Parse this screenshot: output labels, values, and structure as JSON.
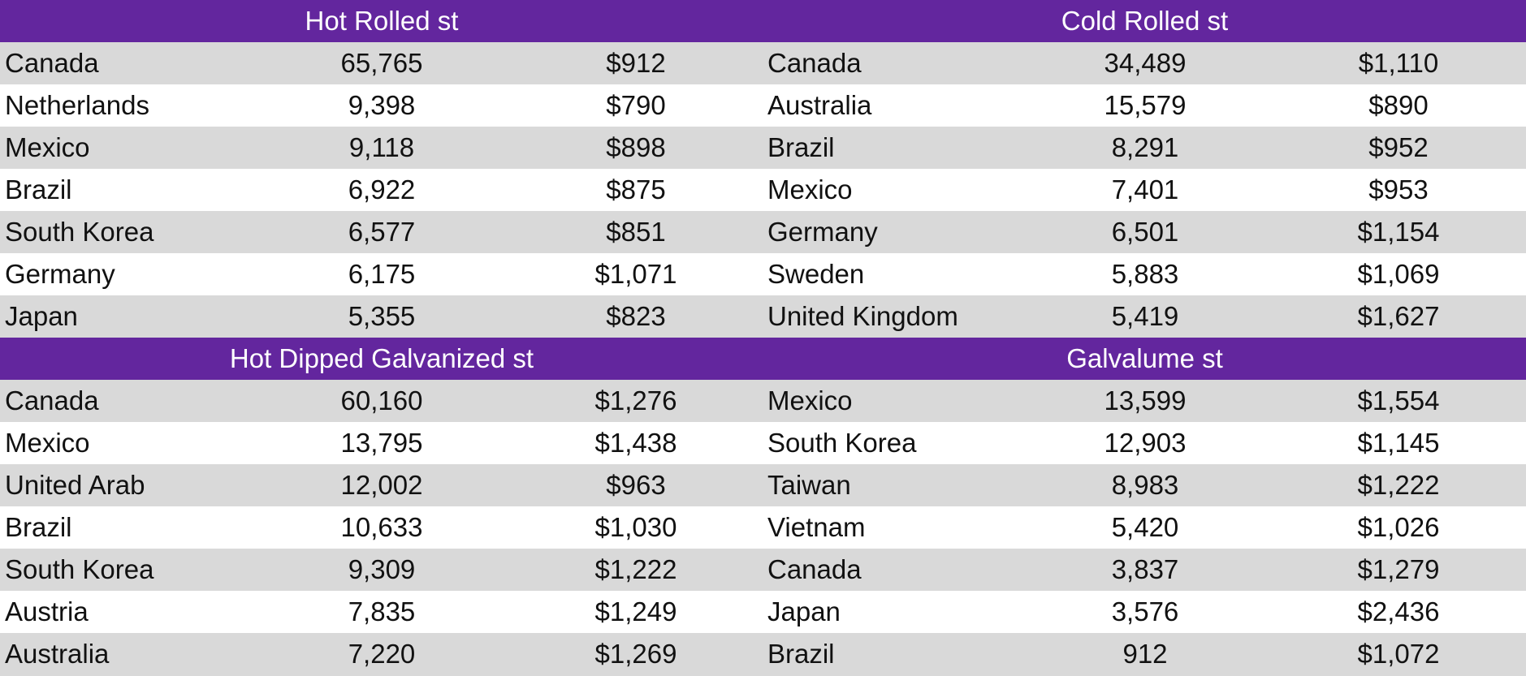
{
  "sections": [
    {
      "left": {
        "title": "Hot Rolled  st",
        "rows": [
          {
            "country": "Canada",
            "volume": "65,765",
            "price": "$912"
          },
          {
            "country": "Netherlands",
            "volume": "9,398",
            "price": "$790"
          },
          {
            "country": "Mexico",
            "volume": "9,118",
            "price": "$898"
          },
          {
            "country": "Brazil",
            "volume": "6,922",
            "price": "$875"
          },
          {
            "country": "South Korea",
            "volume": "6,577",
            "price": "$851"
          },
          {
            "country": "Germany",
            "volume": "6,175",
            "price": "$1,071"
          },
          {
            "country": "Japan",
            "volume": "5,355",
            "price": "$823"
          }
        ]
      },
      "right": {
        "title": "Cold Rolled st",
        "rows": [
          {
            "country": "Canada",
            "volume": "34,489",
            "price": "$1,110"
          },
          {
            "country": "Australia",
            "volume": "15,579",
            "price": "$890"
          },
          {
            "country": "Brazil",
            "volume": "8,291",
            "price": "$952"
          },
          {
            "country": "Mexico",
            "volume": "7,401",
            "price": "$953"
          },
          {
            "country": "Germany",
            "volume": "6,501",
            "price": "$1,154"
          },
          {
            "country": "Sweden",
            "volume": "5,883",
            "price": "$1,069"
          },
          {
            "country": "United Kingdom",
            "volume": "5,419",
            "price": "$1,627"
          }
        ]
      }
    },
    {
      "left": {
        "title": "Hot Dipped Galvanized st",
        "rows": [
          {
            "country": "Canada",
            "volume": "60,160",
            "price": "$1,276"
          },
          {
            "country": "Mexico",
            "volume": "13,795",
            "price": "$1,438"
          },
          {
            "country": "United Arab",
            "volume": "12,002",
            "price": "$963"
          },
          {
            "country": "Brazil",
            "volume": "10,633",
            "price": "$1,030"
          },
          {
            "country": "South Korea",
            "volume": "9,309",
            "price": "$1,222"
          },
          {
            "country": "Austria",
            "volume": "7,835",
            "price": "$1,249"
          },
          {
            "country": "Australia",
            "volume": "7,220",
            "price": "$1,269"
          }
        ]
      },
      "right": {
        "title": "Galvalume st",
        "rows": [
          {
            "country": "Mexico",
            "volume": "13,599",
            "price": "$1,554"
          },
          {
            "country": "South Korea",
            "volume": "12,903",
            "price": "$1,145"
          },
          {
            "country": "Taiwan",
            "volume": "8,983",
            "price": "$1,222"
          },
          {
            "country": "Vietnam",
            "volume": "5,420",
            "price": "$1,026"
          },
          {
            "country": "Canada",
            "volume": "3,837",
            "price": "$1,279"
          },
          {
            "country": "Japan",
            "volume": "3,576",
            "price": "$2,436"
          },
          {
            "country": "Brazil",
            "volume": "912",
            "price": "$1,072"
          }
        ]
      }
    }
  ],
  "colors": {
    "header_bg": "#63269e",
    "header_text": "#ffffff",
    "shaded_row": "#d9d9d9",
    "plain_row": "#ffffff"
  }
}
